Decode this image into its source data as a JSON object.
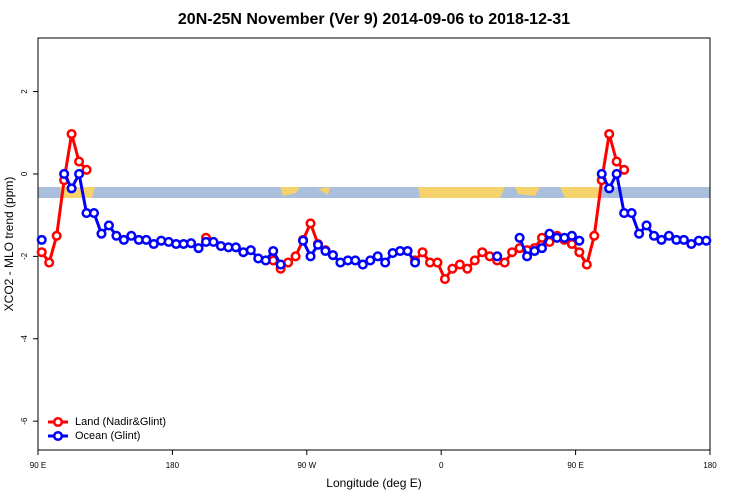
{
  "chart_data": {
    "type": "line",
    "title": "20N-25N November (Ver 9)   2014-09-06 to 2018-12-31",
    "x_label": "Longitude (deg E)",
    "y_label": "XCO2 - MLO trend (ppm)",
    "x": [
      92.5,
      97.5,
      102.5,
      107.5,
      112.5,
      117.5,
      122.5,
      127.5,
      132.5,
      137.5,
      142.5,
      147.5,
      152.5,
      157.5,
      162.5,
      167.5,
      172.5,
      177.5,
      182.5,
      187.5,
      192.5,
      197.5,
      202.5,
      207.5,
      212.5,
      217.5,
      222.5,
      227.5,
      232.5,
      237.5,
      242.5,
      247.5,
      252.5,
      257.5,
      262.5,
      267.5,
      272.5,
      277.5,
      282.5,
      287.5,
      292.5,
      297.5,
      302.5,
      307.5,
      312.5,
      317.5,
      322.5,
      327.5,
      332.5,
      337.5,
      342.5,
      347.5,
      352.5,
      357.5,
      362.5,
      367.5,
      372.5,
      377.5,
      382.5,
      387.5,
      392.5,
      397.5,
      402.5,
      407.5,
      412.5,
      417.5,
      422.5,
      427.5,
      432.5,
      437.5,
      442.5,
      447.5,
      452.5,
      457.5,
      462.5,
      467.5,
      472.5,
      477.5,
      482.5,
      487.5,
      492.5,
      497.5,
      502.5,
      507.5,
      512.5,
      517.5,
      522.5,
      527.5,
      532.5,
      537.5
    ],
    "series": [
      {
        "name": "Land (Nadir&Glint)",
        "color": "#ff0000",
        "values": [
          -1.9,
          -2.15,
          -1.5,
          -0.15,
          0.97,
          0.3,
          0.1,
          null,
          null,
          null,
          null,
          null,
          null,
          null,
          null,
          null,
          null,
          null,
          null,
          null,
          null,
          null,
          -1.55,
          null,
          null,
          null,
          null,
          null,
          null,
          null,
          null,
          -2.1,
          -2.3,
          -2.15,
          -2.0,
          -1.6,
          -1.2,
          -1.7,
          -1.85,
          null,
          null,
          null,
          null,
          null,
          null,
          null,
          null,
          null,
          null,
          null,
          -2.1,
          -1.9,
          -2.15,
          -2.15,
          -2.55,
          -2.3,
          -2.2,
          -2.3,
          -2.1,
          -1.9,
          -2.0,
          -2.1,
          -2.15,
          -1.9,
          -1.8,
          -1.85,
          -1.8,
          -1.55,
          -1.65,
          -1.5,
          -1.6,
          -1.7,
          -1.9,
          -2.2,
          -1.5,
          -0.15,
          0.97,
          0.3,
          0.1,
          null,
          null,
          null,
          null,
          null,
          null,
          null,
          null,
          null,
          null,
          null
        ]
      },
      {
        "name": "Ocean (Glint)",
        "color": "#0000ff",
        "values": [
          -1.6,
          null,
          null,
          0.0,
          -0.35,
          0.0,
          -0.95,
          -0.95,
          -1.45,
          -1.25,
          -1.5,
          -1.6,
          -1.5,
          -1.6,
          -1.6,
          -1.7,
          -1.62,
          -1.65,
          -1.7,
          -1.7,
          -1.68,
          -1.8,
          -1.65,
          -1.65,
          -1.75,
          -1.78,
          -1.78,
          -1.9,
          -1.85,
          -2.05,
          -2.1,
          -1.87,
          -2.2,
          null,
          null,
          -1.62,
          -2.0,
          -1.72,
          -1.87,
          -1.97,
          -2.15,
          -2.1,
          -2.1,
          -2.2,
          -2.1,
          -2.0,
          -2.15,
          -1.92,
          -1.87,
          -1.87,
          -2.15,
          null,
          null,
          null,
          null,
          null,
          null,
          null,
          null,
          null,
          null,
          -2.0,
          null,
          null,
          -1.55,
          -2.0,
          -1.87,
          -1.8,
          -1.45,
          -1.55,
          -1.55,
          -1.5,
          -1.62,
          null,
          null,
          0.0,
          -0.35,
          0.0,
          -0.95,
          -0.95,
          -1.45,
          -1.25,
          -1.5,
          -1.6,
          -1.5,
          -1.6,
          -1.6,
          -1.7,
          -1.62,
          -1.62
        ]
      }
    ],
    "xlim": [
      90,
      540
    ],
    "xticks": [
      {
        "value": 90,
        "label": "90 E"
      },
      {
        "value": 180,
        "label": "180"
      },
      {
        "value": 270,
        "label": "90 W"
      },
      {
        "value": 360,
        "label": "0"
      },
      {
        "value": 450,
        "label": "90 E"
      },
      {
        "value": 540,
        "label": "180"
      }
    ],
    "ylim": [
      -6.7,
      3.3
    ],
    "yticks": [
      -6,
      -4,
      -2,
      0,
      2
    ],
    "legend": "bottomleft"
  }
}
